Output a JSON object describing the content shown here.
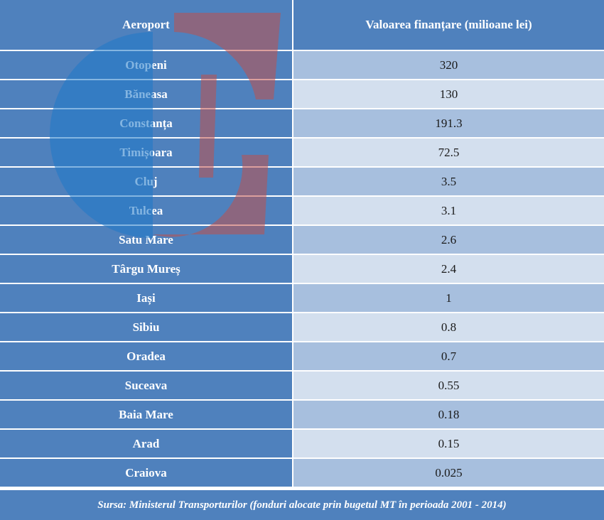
{
  "table": {
    "header": {
      "col1": "Aeroport",
      "col2": "Valoarea finanțare (milioane lei)"
    },
    "rows": [
      {
        "airport": "Otopeni",
        "value": "320"
      },
      {
        "airport": "Băneasa",
        "value": "130"
      },
      {
        "airport": "Constanța",
        "value": "191.3"
      },
      {
        "airport": "Timișoara",
        "value": "72.5"
      },
      {
        "airport": "Cluj",
        "value": "3.5"
      },
      {
        "airport": "Tulcea",
        "value": "3.1"
      },
      {
        "airport": "Satu Mare",
        "value": "2.6"
      },
      {
        "airport": "Târgu Mureș",
        "value": "2.4"
      },
      {
        "airport": "Iași",
        "value": "1"
      },
      {
        "airport": "Sibiu",
        "value": "0.8"
      },
      {
        "airport": "Oradea",
        "value": "0.7"
      },
      {
        "airport": "Suceava",
        "value": "0.55"
      },
      {
        "airport": "Baia Mare",
        "value": "0.18"
      },
      {
        "airport": "Arad",
        "value": "0.15"
      },
      {
        "airport": "Craiova",
        "value": "0.025"
      }
    ],
    "footer": "Sursa: Ministerul Transporturilor (fonduri alocate prin bugetul MT în perioada 2001 - 2014)"
  },
  "colors": {
    "header_blue": "#4f81bd",
    "band_dark": "#a7bfde",
    "band_light": "#d3dfee",
    "logo_blue": "#1f78c8",
    "logo_red": "#c0504d"
  },
  "watermark": {
    "icon": "airport-logo-watermark-icon"
  }
}
